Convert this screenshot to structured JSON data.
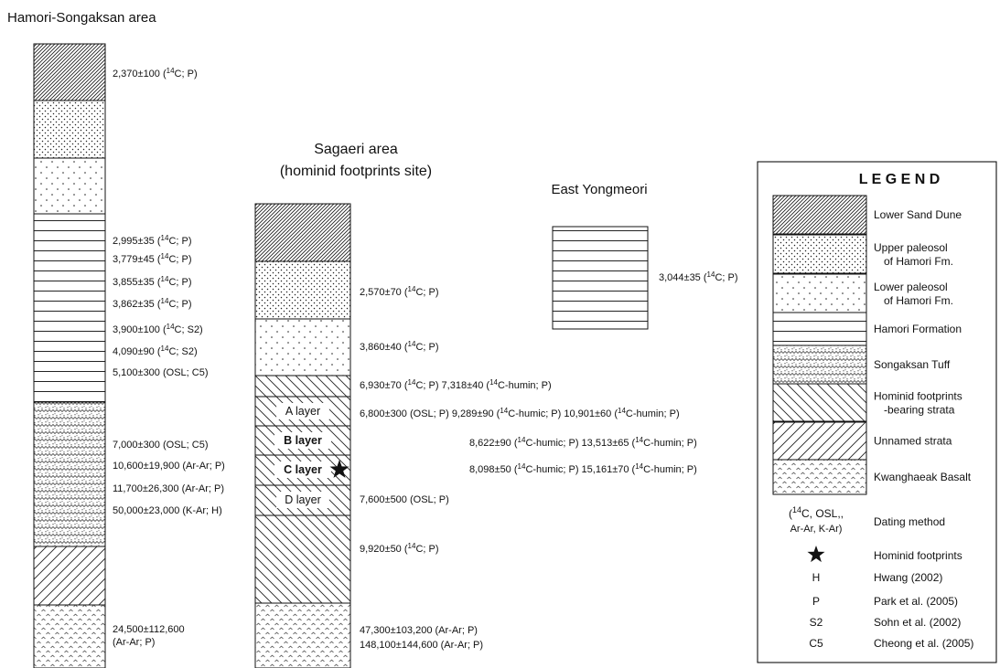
{
  "titles": {
    "hamori": "Hamori-Songaksan area",
    "sagaeri_line1": "Sagaeri area",
    "sagaeri_line2": "(hominid footprints site)",
    "east": "East Yongmeori"
  },
  "sagaeri_layers": [
    {
      "label": "A layer",
      "bold": false
    },
    {
      "label": "B layer",
      "bold": true
    },
    {
      "label": "C layer",
      "bold": true
    },
    {
      "label": "D layer",
      "bold": false
    }
  ],
  "hamori_dates": [
    [
      {
        "t": "2,370±100 ("
      },
      {
        "t": "14",
        "sup": true
      },
      {
        "t": "C; P)"
      }
    ],
    [
      {
        "t": "2,995±35 ("
      },
      {
        "t": "14",
        "sup": true
      },
      {
        "t": "C; P)"
      }
    ],
    [
      {
        "t": "3,779±45 ("
      },
      {
        "t": "14",
        "sup": true
      },
      {
        "t": "C; P)"
      }
    ],
    [
      {
        "t": "3,855±35 ("
      },
      {
        "t": "14",
        "sup": true
      },
      {
        "t": "C; P)"
      }
    ],
    [
      {
        "t": "3,862±35 ("
      },
      {
        "t": "14",
        "sup": true
      },
      {
        "t": "C; P)"
      }
    ],
    [
      {
        "t": "3,900±100 ("
      },
      {
        "t": "14",
        "sup": true
      },
      {
        "t": "C; S2)"
      }
    ],
    [
      {
        "t": "4,090±90 ("
      },
      {
        "t": "14",
        "sup": true
      },
      {
        "t": "C; S2)"
      }
    ],
    [
      {
        "t": "5,100±300 (OSL; C5)"
      }
    ],
    [
      {
        "t": "7,000±300 (OSL; C5)"
      }
    ],
    [
      {
        "t": "10,600±19,900 (Ar-Ar; P)"
      }
    ],
    [
      {
        "t": "11,700±26,300 (Ar-Ar; P)"
      }
    ],
    [
      {
        "t": "50,000±23,000 (K-Ar; H)"
      }
    ],
    [
      {
        "t": "24,500±112,600"
      }
    ],
    [
      {
        "t": " (Ar-Ar; P)"
      }
    ]
  ],
  "sagaeri_dates": [
    [
      {
        "t": "2,570±70 ("
      },
      {
        "t": "14",
        "sup": true
      },
      {
        "t": "C; P)"
      }
    ],
    [
      {
        "t": "3,860±40 ("
      },
      {
        "t": "14",
        "sup": true
      },
      {
        "t": "C; P)"
      }
    ],
    [
      {
        "t": "6,930±70 ("
      },
      {
        "t": "14",
        "sup": true
      },
      {
        "t": "C; P) 7,318±40 ("
      },
      {
        "t": "14",
        "sup": true
      },
      {
        "t": "C-humin; P)"
      }
    ],
    [
      {
        "t": "6,800±300 (OSL; P) 9,289±90 ("
      },
      {
        "t": "14",
        "sup": true
      },
      {
        "t": "C-humic; P) 10,901±60 ("
      },
      {
        "t": "14",
        "sup": true
      },
      {
        "t": "C-humin; P)"
      }
    ],
    [
      {
        "t": "8,622±90 ("
      },
      {
        "t": "14",
        "sup": true
      },
      {
        "t": "C-humic; P) 13,513±65 ("
      },
      {
        "t": "14",
        "sup": true
      },
      {
        "t": "C-humin; P)"
      }
    ],
    [
      {
        "t": "8,098±50 ("
      },
      {
        "t": "14",
        "sup": true
      },
      {
        "t": "C-humic; P) 15,161±70 ("
      },
      {
        "t": "14",
        "sup": true
      },
      {
        "t": "C-humin; P)"
      }
    ],
    [
      {
        "t": "7,600±500 (OSL; P)"
      }
    ],
    [
      {
        "t": "9,920±50 ("
      },
      {
        "t": "14",
        "sup": true
      },
      {
        "t": "C; P)"
      }
    ],
    [
      {
        "t": "47,300±103,200 (Ar-Ar; P)"
      }
    ],
    [
      {
        "t": "148,100±144,600 (Ar-Ar; P)"
      }
    ]
  ],
  "east_dates": [
    [
      {
        "t": "3,044±35 ("
      },
      {
        "t": "14",
        "sup": true
      },
      {
        "t": "C; P)"
      }
    ]
  ],
  "legend": {
    "title": "L E G E N D",
    "items": [
      {
        "label1": "Lower Sand Dune",
        "label2": ""
      },
      {
        "label1": "Upper paleosol",
        "label2": "of Hamori Fm."
      },
      {
        "label1": "Lower paleosol",
        "label2": "of Hamori Fm."
      },
      {
        "label1": "Hamori Formation",
        "label2": ""
      },
      {
        "label1": "Songaksan Tuff",
        "label2": ""
      },
      {
        "label1": "Hominid footprints",
        "label2": "-bearing strata"
      },
      {
        "label1": "Unnamed strata",
        "label2": ""
      },
      {
        "label1": "Kwanghaeak Basalt",
        "label2": ""
      }
    ],
    "method_symbol_line1": [
      {
        "t": "("
      },
      {
        "t": "14",
        "sup": true
      },
      {
        "t": "C, OSL,,"
      }
    ],
    "method_symbol_line2": [
      {
        "t": "Ar-Ar, K-Ar)"
      }
    ],
    "method_label": "Dating method",
    "footprint_label": "Hominid footprints",
    "refs": [
      {
        "symbol": "H",
        "label": "Hwang (2002)"
      },
      {
        "symbol": "P",
        "label": "Park et al. (2005)"
      },
      {
        "symbol": "S2",
        "label": "Sohn et al. (2002)"
      },
      {
        "symbol": "C5",
        "label": "Cheong et al. (2005)"
      }
    ]
  }
}
